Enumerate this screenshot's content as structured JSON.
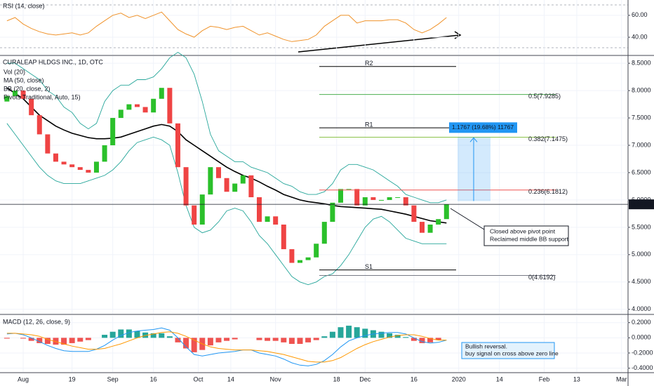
{
  "chart_data": [
    {
      "type": "line",
      "title": "RSI (14, close)",
      "ylim": [
        24,
        74
      ],
      "yticks": [
        {
          "value": 40,
          "label": "40.00"
        },
        {
          "value": 60,
          "label": "60.00"
        }
      ],
      "series": [
        {
          "color": "#f0932b",
          "values": [
            55,
            58,
            52,
            48,
            45,
            43,
            42,
            43,
            44,
            42,
            44,
            50,
            55,
            60,
            62,
            58,
            60,
            57,
            60,
            63,
            55,
            47,
            43,
            40,
            46,
            50,
            49,
            47,
            49,
            50,
            46,
            42,
            44,
            41,
            38,
            36,
            37,
            38,
            42,
            50,
            55,
            60,
            60,
            53,
            55,
            55,
            55,
            56,
            56,
            53,
            47,
            44,
            47,
            52,
            58
          ]
        }
      ]
    },
    {
      "type": "candlestick",
      "title": "CURALEAP HLDGS INC., 1D, OTC",
      "legend": [
        "Vol (20)",
        "MA (50, close)",
        "BB (20, close, 2)",
        "Pivots Traditional, Auto, 15)"
      ],
      "xlim": [
        -5.7,
        148.6
      ],
      "xticks": [
        {
          "value": 0,
          "label": "Aug"
        },
        {
          "value": 12,
          "label": "19"
        },
        {
          "value": 22,
          "label": "Sep"
        },
        {
          "value": 32,
          "label": "16"
        },
        {
          "value": 43,
          "label": "Oct"
        },
        {
          "value": 51,
          "label": "14"
        },
        {
          "value": 62,
          "label": "Nov"
        },
        {
          "value": 77,
          "label": "18"
        },
        {
          "value": 84,
          "label": "Dec"
        },
        {
          "value": 96,
          "label": "16"
        },
        {
          "value": 107,
          "label": "2020"
        },
        {
          "value": 117,
          "label": "14"
        },
        {
          "value": 128,
          "label": "Feb"
        },
        {
          "value": 136,
          "label": "13"
        },
        {
          "value": 147,
          "label": "Mar"
        }
      ],
      "ylim": [
        3.92,
        8.63
      ],
      "yticks": [
        {
          "value": 4,
          "label": "4.0000"
        },
        {
          "value": 4.5,
          "label": "4.5000"
        },
        {
          "value": 5,
          "label": "5.0000"
        },
        {
          "value": 5.5,
          "label": "5.5000"
        },
        {
          "value": 6,
          "label": "6.0000"
        },
        {
          "value": 6.5,
          "label": "6.5000"
        },
        {
          "value": 7,
          "label": "7.0000"
        },
        {
          "value": 7.5,
          "label": "7.5000"
        },
        {
          "value": 8,
          "label": "8.0000"
        },
        {
          "value": 8.5,
          "label": "8.5000"
        }
      ],
      "up_color": "#2bc02b",
      "down_color": "#ef4444",
      "x": [
        -4,
        -2,
        0,
        2,
        4,
        6,
        8,
        10,
        12,
        14,
        16,
        18,
        20,
        22,
        24,
        26,
        28,
        30,
        32,
        34,
        36,
        38,
        40,
        42,
        44,
        46,
        48,
        50,
        52,
        54,
        56,
        58,
        60,
        62,
        64,
        66,
        68,
        70,
        72,
        74,
        76,
        78,
        80,
        82,
        84,
        86,
        88,
        90,
        92,
        94,
        96,
        98,
        100,
        102,
        104
      ],
      "open": [
        7.8,
        7.9,
        8.0,
        7.85,
        7.55,
        7.2,
        6.85,
        6.7,
        6.65,
        6.6,
        6.55,
        6.5,
        6.7,
        7.0,
        7.5,
        7.65,
        7.75,
        7.7,
        7.6,
        7.85,
        8.05,
        7.4,
        6.6,
        5.9,
        5.55,
        6.1,
        6.6,
        6.4,
        6.15,
        6.3,
        6.45,
        6.05,
        5.6,
        5.7,
        5.55,
        5.1,
        4.85,
        4.9,
        4.95,
        5.2,
        5.6,
        5.95,
        6.2,
        6.2,
        5.9,
        6.05,
        6.0,
        6.0,
        6.05,
        6.05,
        5.9,
        5.6,
        5.4,
        5.55,
        5.65
      ],
      "close": [
        7.9,
        8.0,
        7.85,
        7.55,
        7.2,
        6.85,
        6.7,
        6.65,
        6.6,
        6.55,
        6.5,
        6.7,
        7.0,
        7.5,
        7.65,
        7.75,
        7.7,
        7.6,
        7.85,
        8.05,
        7.4,
        6.6,
        5.9,
        5.55,
        6.1,
        6.6,
        6.4,
        6.15,
        6.3,
        6.45,
        6.05,
        5.6,
        5.7,
        5.55,
        5.1,
        4.85,
        4.9,
        4.95,
        5.2,
        5.6,
        5.95,
        6.2,
        6.2,
        5.9,
        6.05,
        6.0,
        6.0,
        6.05,
        6.05,
        5.9,
        5.6,
        5.4,
        5.55,
        5.65,
        5.92
      ],
      "series": [
        {
          "color": "#26a69a",
          "values": [
            8.5,
            8.5,
            8.4,
            8.3,
            8.2,
            8.0,
            7.9,
            7.7,
            7.6,
            7.4,
            7.3,
            7.4,
            7.8,
            8.0,
            8.1,
            8.1,
            8.2,
            8.2,
            8.25,
            8.4,
            8.6,
            8.7,
            8.6,
            8.3,
            7.8,
            7.2,
            6.9,
            6.8,
            6.7,
            6.7,
            6.6,
            6.55,
            6.5,
            6.4,
            6.3,
            6.25,
            6.15,
            6.1,
            6.1,
            6.15,
            6.3,
            6.55,
            6.65,
            6.65,
            6.6,
            6.55,
            6.45,
            6.35,
            6.25,
            6.1,
            6.05,
            6.0,
            5.95,
            5.95,
            6.0
          ]
        },
        {
          "color": "#26a69a",
          "values": [
            7.4,
            7.2,
            7.0,
            6.8,
            6.6,
            6.45,
            6.35,
            6.3,
            6.3,
            6.3,
            6.35,
            6.4,
            6.45,
            6.55,
            6.7,
            6.9,
            7.05,
            7.1,
            7.15,
            7.1,
            7.0,
            6.5,
            5.9,
            5.5,
            5.4,
            5.45,
            5.6,
            5.8,
            5.85,
            5.8,
            5.6,
            5.35,
            5.2,
            5.0,
            4.8,
            4.6,
            4.5,
            4.45,
            4.5,
            4.6,
            4.65,
            4.8,
            5.0,
            5.25,
            5.5,
            5.65,
            5.7,
            5.6,
            5.45,
            5.3,
            5.25,
            5.2,
            5.2,
            5.2,
            5.2
          ]
        },
        {
          "color": "#000000",
          "values": [
            8.05,
            7.95,
            7.85,
            7.7,
            7.55,
            7.45,
            7.35,
            7.28,
            7.22,
            7.18,
            7.14,
            7.12,
            7.12,
            7.13,
            7.15,
            7.2,
            7.25,
            7.3,
            7.35,
            7.38,
            7.35,
            7.25,
            7.1,
            7.0,
            6.9,
            6.8,
            6.7,
            6.6,
            6.52,
            6.45,
            6.4,
            6.33,
            6.25,
            6.18,
            6.1,
            6.05,
            6.0,
            5.97,
            5.95,
            5.93,
            5.9,
            5.88,
            5.87,
            5.86,
            5.85,
            5.84,
            5.83,
            5.8,
            5.77,
            5.74,
            5.7,
            5.66,
            5.62,
            5.6,
            5.58
          ]
        }
      ],
      "pivots": [
        {
          "label": "R2",
          "value": 8.44
        },
        {
          "label": "R1",
          "value": 7.32
        },
        {
          "label": "S1",
          "value": 4.72
        }
      ],
      "fibs": [
        {
          "label": "0.5(7.9285)",
          "value": 7.9285,
          "color": "#4caf50"
        },
        {
          "label": "0.382(7.1475)",
          "value": 7.1475,
          "color": "#8bc34a"
        },
        {
          "label": "0.236(6.1812)",
          "value": 6.1812,
          "color": "#ef5350"
        },
        {
          "label": "0(4.6192)",
          "value": 4.6192,
          "color": "#787b86"
        }
      ],
      "last_price": {
        "value": 5.92,
        "label": "5.9200"
      },
      "measure": {
        "from": 5.98,
        "to": 7.15,
        "label": "1.1767 (19.68%) 11767"
      },
      "annotation": [
        "Closed above pivot point",
        "Reclaimed middle BB support"
      ]
    },
    {
      "type": "macd",
      "title": "MACD (12, 26, close, 9)",
      "ylim": [
        -0.45,
        0.29
      ],
      "yticks": [
        {
          "value": 0.2,
          "label": "0.2000"
        },
        {
          "value": 0,
          "label": "0.0000"
        },
        {
          "value": -0.2,
          "label": "-0.2000"
        },
        {
          "value": -0.4,
          "label": "-0.4000"
        }
      ],
      "pos_color": "#26a69a",
      "neg_color": "#ef5350",
      "histogram": [
        -0.01,
        0,
        -0.01,
        -0.04,
        -0.07,
        -0.08,
        -0.09,
        -0.09,
        -0.07,
        -0.05,
        -0.03,
        0,
        0.04,
        0.08,
        0.11,
        0.11,
        0.09,
        0.07,
        0.06,
        0.06,
        0.02,
        -0.06,
        -0.14,
        -0.19,
        -0.16,
        -0.1,
        -0.06,
        -0.04,
        -0.02,
        0,
        0,
        -0.03,
        -0.04,
        -0.04,
        -0.06,
        -0.08,
        -0.08,
        -0.06,
        -0.03,
        0.02,
        0.08,
        0.14,
        0.16,
        0.14,
        0.12,
        0.1,
        0.08,
        0.06,
        0.04,
        0.01,
        -0.04,
        -0.07,
        -0.06,
        -0.03,
        0
      ],
      "series": [
        {
          "color": "#2196f3",
          "values": [
            0.05,
            0.06,
            0.04,
            0.0,
            -0.05,
            -0.1,
            -0.14,
            -0.17,
            -0.18,
            -0.18,
            -0.18,
            -0.15,
            -0.1,
            -0.03,
            0.03,
            0.07,
            0.09,
            0.1,
            0.11,
            0.13,
            0.1,
            0.0,
            -0.12,
            -0.22,
            -0.24,
            -0.22,
            -0.2,
            -0.19,
            -0.18,
            -0.16,
            -0.16,
            -0.2,
            -0.22,
            -0.24,
            -0.28,
            -0.33,
            -0.36,
            -0.37,
            -0.35,
            -0.3,
            -0.22,
            -0.12,
            -0.04,
            0.0,
            0.03,
            0.05,
            0.06,
            0.07,
            0.07,
            0.05,
            0.0,
            -0.05,
            -0.07,
            -0.06,
            -0.03
          ]
        },
        {
          "color": "#ff9800",
          "values": [
            0.06,
            0.06,
            0.05,
            0.04,
            0.02,
            -0.02,
            -0.05,
            -0.08,
            -0.11,
            -0.13,
            -0.15,
            -0.15,
            -0.14,
            -0.11,
            -0.08,
            -0.04,
            0.0,
            0.03,
            0.05,
            0.07,
            0.08,
            0.06,
            0.02,
            -0.03,
            -0.08,
            -0.12,
            -0.14,
            -0.15,
            -0.16,
            -0.16,
            -0.16,
            -0.17,
            -0.18,
            -0.2,
            -0.22,
            -0.25,
            -0.28,
            -0.31,
            -0.32,
            -0.32,
            -0.3,
            -0.26,
            -0.2,
            -0.14,
            -0.09,
            -0.05,
            -0.02,
            0.01,
            0.03,
            0.04,
            0.04,
            0.02,
            -0.01,
            -0.03,
            -0.03
          ]
        }
      ],
      "annotation": [
        "Bullish reversal.",
        "buy signal on cross above zero line"
      ]
    }
  ]
}
